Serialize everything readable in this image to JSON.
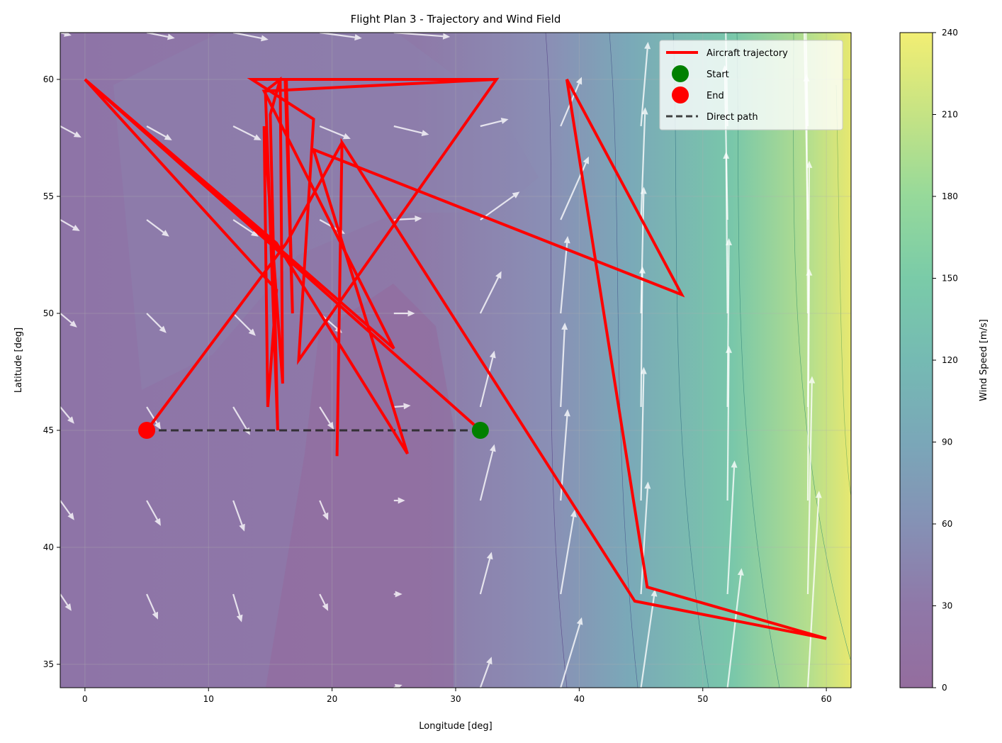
{
  "chart_data": {
    "type": "line",
    "title": "Flight Plan 3 - Trajectory and Wind Field",
    "xlabel": "Longitude [deg]",
    "ylabel": "Latitude [deg]",
    "xlim": [
      -2,
      62
    ],
    "ylim": [
      34,
      62
    ],
    "xticks": [
      0,
      10,
      20,
      30,
      40,
      50,
      60
    ],
    "yticks": [
      35,
      40,
      45,
      50,
      55,
      60
    ],
    "grid": true,
    "legend_position": "top-right",
    "colorbar": {
      "label": "Wind Speed [m/s]",
      "range": [
        0,
        240
      ],
      "ticks": [
        0,
        30,
        60,
        90,
        120,
        150,
        180,
        210,
        240
      ],
      "colormap": "viridis",
      "alpha": 0.6
    },
    "colors": {
      "trajectory": "#ff0000",
      "start": "#008000",
      "end": "#ff0000",
      "direct_path": "#222222",
      "wind_arrows": "#ffffff"
    },
    "series": [
      {
        "name": "Aircraft trajectory",
        "points": [
          [
            32,
            45
          ],
          [
            0,
            60
          ],
          [
            15.5,
            51
          ],
          [
            14.8,
            46
          ],
          [
            14.5,
            58
          ],
          [
            16,
            47
          ],
          [
            15.8,
            60
          ],
          [
            14.6,
            59.5
          ],
          [
            15.6,
            45
          ],
          [
            15,
            58.5
          ],
          [
            15.8,
            60
          ],
          [
            16.3,
            60
          ],
          [
            16.8,
            50
          ],
          [
            16.2,
            60
          ],
          [
            13.5,
            60
          ],
          [
            18.5,
            58.3
          ],
          [
            17.3,
            48
          ],
          [
            33.3,
            60
          ],
          [
            13.5,
            60
          ],
          [
            18.5,
            58.3
          ],
          [
            17.3,
            48
          ],
          [
            33.3,
            60
          ],
          [
            14.5,
            59.5
          ],
          [
            25,
            48.5
          ],
          [
            0,
            60
          ],
          [
            15.5,
            53
          ],
          [
            26.1,
            44
          ],
          [
            18.5,
            57
          ],
          [
            48.3,
            50.8
          ],
          [
            39,
            60
          ],
          [
            45.5,
            38.3
          ],
          [
            60,
            36.1
          ],
          [
            44.5,
            37.7
          ],
          [
            20.8,
            57.3
          ],
          [
            20.4,
            43.9
          ],
          [
            20.8,
            57.3
          ],
          [
            16.3,
            53
          ],
          [
            5,
            45
          ]
        ]
      }
    ],
    "start": {
      "name": "Start",
      "lon": 32,
      "lat": 45
    },
    "end": {
      "name": "End",
      "lon": 5,
      "lat": 45
    },
    "direct_path": {
      "name": "Direct path",
      "from": [
        5,
        45
      ],
      "to": [
        32,
        45
      ]
    },
    "wind_field": {
      "units": "m/s",
      "arrows": [
        {
          "lon": -2,
          "lat": 62,
          "u": 8,
          "v": -2
        },
        {
          "lon": 5,
          "lat": 62,
          "u": 20,
          "v": -4
        },
        {
          "lon": 12,
          "lat": 62,
          "u": 25,
          "v": -5
        },
        {
          "lon": 19,
          "lat": 62,
          "u": 30,
          "v": -4
        },
        {
          "lon": 25,
          "lat": 62,
          "u": 40,
          "v": -3
        },
        {
          "lon": -2,
          "lat": 58,
          "u": 15,
          "v": -8
        },
        {
          "lon": 5,
          "lat": 58,
          "u": 18,
          "v": -10
        },
        {
          "lon": 12,
          "lat": 58,
          "u": 20,
          "v": -10
        },
        {
          "lon": 19,
          "lat": 58,
          "u": 22,
          "v": -9
        },
        {
          "lon": 25,
          "lat": 58,
          "u": 25,
          "v": -6
        },
        {
          "lon": 32,
          "lat": 58,
          "u": 20,
          "v": 5
        },
        {
          "lon": -2,
          "lat": 54,
          "u": 14,
          "v": -8
        },
        {
          "lon": 5,
          "lat": 54,
          "u": 16,
          "v": -12
        },
        {
          "lon": 12,
          "lat": 54,
          "u": 18,
          "v": -12
        },
        {
          "lon": 19,
          "lat": 54,
          "u": 18,
          "v": -10
        },
        {
          "lon": 25,
          "lat": 54,
          "u": 20,
          "v": 1
        },
        {
          "lon": 32,
          "lat": 54,
          "u": 28,
          "v": 20
        },
        {
          "lon": -2,
          "lat": 50,
          "u": 12,
          "v": -10
        },
        {
          "lon": 5,
          "lat": 50,
          "u": 14,
          "v": -14
        },
        {
          "lon": 12,
          "lat": 50,
          "u": 16,
          "v": -16
        },
        {
          "lon": 19,
          "lat": 50,
          "u": 16,
          "v": -14
        },
        {
          "lon": 25,
          "lat": 50,
          "u": 15,
          "v": 0
        },
        {
          "lon": 32,
          "lat": 50,
          "u": 15,
          "v": 30
        },
        {
          "lon": -2,
          "lat": 46,
          "u": 10,
          "v": -12
        },
        {
          "lon": 5,
          "lat": 46,
          "u": 10,
          "v": -16
        },
        {
          "lon": 12,
          "lat": 46,
          "u": 12,
          "v": -20
        },
        {
          "lon": 19,
          "lat": 46,
          "u": 10,
          "v": -16
        },
        {
          "lon": 25,
          "lat": 46,
          "u": 12,
          "v": 1
        },
        {
          "lon": 32,
          "lat": 46,
          "u": 10,
          "v": 40
        },
        {
          "lon": -2,
          "lat": 42,
          "u": 10,
          "v": -14
        },
        {
          "lon": 5,
          "lat": 42,
          "u": 10,
          "v": -18
        },
        {
          "lon": 12,
          "lat": 42,
          "u": 8,
          "v": -22
        },
        {
          "lon": 19,
          "lat": 42,
          "u": 6,
          "v": -14
        },
        {
          "lon": 25,
          "lat": 42,
          "u": 8,
          "v": 0
        },
        {
          "lon": 32,
          "lat": 42,
          "u": 10,
          "v": 40
        },
        {
          "lon": -2,
          "lat": 38,
          "u": 8,
          "v": -12
        },
        {
          "lon": 5,
          "lat": 38,
          "u": 8,
          "v": -18
        },
        {
          "lon": 12,
          "lat": 38,
          "u": 6,
          "v": -20
        },
        {
          "lon": 19,
          "lat": 38,
          "u": 6,
          "v": -12
        },
        {
          "lon": 25,
          "lat": 38,
          "u": 6,
          "v": 0
        },
        {
          "lon": 32,
          "lat": 38,
          "u": 8,
          "v": 30
        },
        {
          "lon": 25,
          "lat": 34,
          "u": 6,
          "v": 2
        },
        {
          "lon": 32,
          "lat": 34,
          "u": 8,
          "v": 22
        },
        {
          "lon": 38.5,
          "lat": 58,
          "u": 15,
          "v": 35
        },
        {
          "lon": 38.5,
          "lat": 54,
          "u": 20,
          "v": 45
        },
        {
          "lon": 38.5,
          "lat": 50,
          "u": 5,
          "v": 55
        },
        {
          "lon": 38.5,
          "lat": 46,
          "u": 3,
          "v": 60
        },
        {
          "lon": 38.5,
          "lat": 42,
          "u": 5,
          "v": 65
        },
        {
          "lon": 38.5,
          "lat": 38,
          "u": 10,
          "v": 60
        },
        {
          "lon": 38.5,
          "lat": 34,
          "u": 15,
          "v": 50
        },
        {
          "lon": 45,
          "lat": 58,
          "u": 5,
          "v": 60
        },
        {
          "lon": 45,
          "lat": 54,
          "u": 3,
          "v": 80
        },
        {
          "lon": 45,
          "lat": 50,
          "u": 2,
          "v": 90
        },
        {
          "lon": 45,
          "lat": 46,
          "u": 1,
          "v": 100
        },
        {
          "lon": 45,
          "lat": 42,
          "u": 2,
          "v": 95
        },
        {
          "lon": 45,
          "lat": 38,
          "u": 5,
          "v": 80
        },
        {
          "lon": 45,
          "lat": 34,
          "u": 10,
          "v": 70
        },
        {
          "lon": 52,
          "lat": 58,
          "u": -2,
          "v": 110
        },
        {
          "lon": 52,
          "lat": 54,
          "u": -2,
          "v": 110
        },
        {
          "lon": 52,
          "lat": 50,
          "u": -1,
          "v": 115
        },
        {
          "lon": 52,
          "lat": 46,
          "u": 1,
          "v": 120
        },
        {
          "lon": 52,
          "lat": 42,
          "u": 1,
          "v": 110
        },
        {
          "lon": 52,
          "lat": 38,
          "u": 5,
          "v": 95
        },
        {
          "lon": 52,
          "lat": 34,
          "u": 10,
          "v": 85
        },
        {
          "lon": 58.5,
          "lat": 58,
          "u": -3,
          "v": 150
        },
        {
          "lon": 58.5,
          "lat": 54,
          "u": -3,
          "v": 160
        },
        {
          "lon": 58.5,
          "lat": 50,
          "u": -1,
          "v": 170
        },
        {
          "lon": 58.5,
          "lat": 46,
          "u": 1,
          "v": 175
        },
        {
          "lon": 58.5,
          "lat": 42,
          "u": 1,
          "v": 165
        },
        {
          "lon": 58.5,
          "lat": 38,
          "u": 3,
          "v": 155
        },
        {
          "lon": 58.5,
          "lat": 34,
          "u": 8,
          "v": 140
        }
      ]
    }
  }
}
